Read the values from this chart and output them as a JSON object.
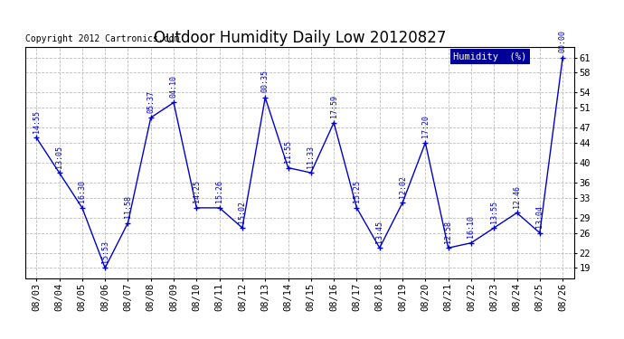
{
  "title": "Outdoor Humidity Daily Low 20120827",
  "copyright": "Copyright 2012 Cartronics.com",
  "legend_label": "Humidity  (%)",
  "dates": [
    "08/03",
    "08/04",
    "08/05",
    "08/06",
    "08/07",
    "08/08",
    "08/09",
    "08/10",
    "08/11",
    "08/12",
    "08/13",
    "08/14",
    "08/15",
    "08/16",
    "08/17",
    "08/18",
    "08/19",
    "08/20",
    "08/21",
    "08/22",
    "08/23",
    "08/24",
    "08/25",
    "08/26"
  ],
  "values": [
    45,
    38,
    31,
    19,
    28,
    49,
    52,
    31,
    31,
    27,
    53,
    39,
    38,
    48,
    31,
    23,
    32,
    44,
    23,
    24,
    27,
    30,
    26,
    61
  ],
  "times": [
    "14:55",
    "13:05",
    "16:30",
    "15:53",
    "11:58",
    "05:37",
    "04:10",
    "14:25",
    "15:26",
    "15:02",
    "00:35",
    "11:55",
    "11:33",
    "17:59",
    "15:25",
    "13:45",
    "12:02",
    "17:20",
    "12:58",
    "16:10",
    "13:55",
    "12:46",
    "13:04",
    "00:00"
  ],
  "line_color": "#0000cc",
  "marker_color": "#0000cc",
  "background_color": "#ffffff",
  "plot_bg_color": "#ffffff",
  "grid_color": "#bbbbbb",
  "title_fontsize": 12,
  "tick_fontsize": 7.5,
  "ylim": [
    17,
    63
  ],
  "yticks": [
    19,
    22,
    26,
    29,
    33,
    36,
    40,
    44,
    47,
    51,
    54,
    58,
    61
  ],
  "ytick_labels": [
    "19",
    "22",
    "26",
    "29",
    "33",
    "36",
    "40",
    "44",
    "47",
    "51",
    "54",
    "58",
    "61"
  ],
  "legend_bg": "#000099",
  "legend_text_color": "#ffffff"
}
